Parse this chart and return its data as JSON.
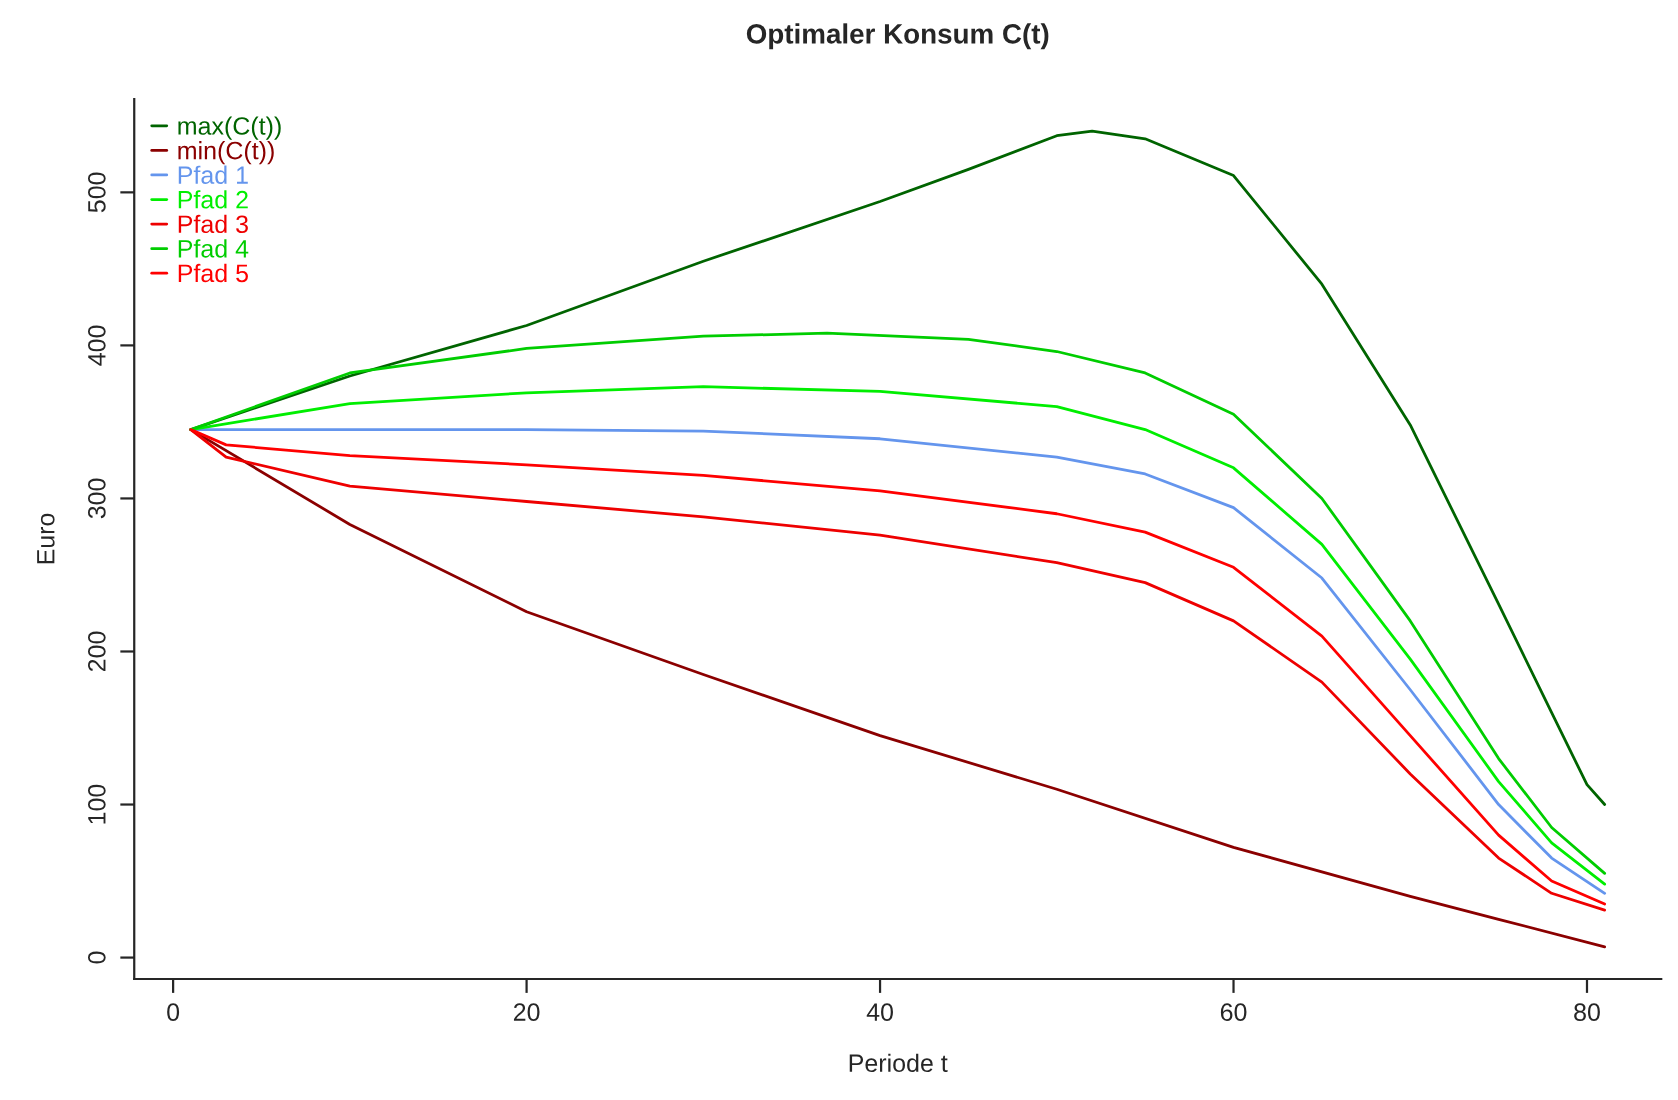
{
  "chart_data": {
    "type": "line",
    "title": "Optimaler Konsum C(t)",
    "xlabel": "Periode t",
    "ylabel": "Euro",
    "xlim": [
      -2.2,
      84.2
    ],
    "ylim": [
      -14,
      561
    ],
    "xticks": [
      0,
      20,
      40,
      60,
      80
    ],
    "yticks": [
      0,
      100,
      200,
      300,
      400,
      500
    ],
    "grid": false,
    "legend": "top left",
    "marker": "none",
    "line_style": "solid",
    "series": [
      {
        "name": "max(C(t))",
        "color": "#006400",
        "x": [
          1,
          10,
          20,
          30,
          40,
          45,
          50,
          52,
          55,
          60,
          65,
          70,
          75,
          78,
          80,
          81
        ],
        "values": [
          345,
          380,
          413,
          455,
          494,
          515,
          537,
          540,
          535,
          511,
          440,
          348,
          231,
          160,
          113,
          100
        ]
      },
      {
        "name": "min(C(t))",
        "color": "#8b0000",
        "x": [
          1,
          10,
          20,
          30,
          40,
          50,
          60,
          70,
          75,
          81
        ],
        "values": [
          345,
          283,
          226,
          185,
          145,
          110,
          72,
          40,
          25,
          7
        ]
      },
      {
        "name": "Pfad 1",
        "color": "#6495ed",
        "x": [
          1,
          5,
          20,
          30,
          40,
          50,
          55,
          60,
          65,
          70,
          75,
          78,
          81
        ],
        "values": [
          345,
          345,
          345,
          344,
          339,
          327,
          316,
          294,
          248,
          175,
          100,
          65,
          42
        ]
      },
      {
        "name": "Pfad 2",
        "color": "#00ee00",
        "x": [
          1,
          10,
          20,
          30,
          40,
          50,
          55,
          60,
          65,
          70,
          75,
          78,
          81
        ],
        "values": [
          345,
          362,
          369,
          373,
          370,
          360,
          345,
          320,
          270,
          195,
          115,
          75,
          48
        ]
      },
      {
        "name": "Pfad 3",
        "color": "#ee0000",
        "x": [
          1,
          3,
          10,
          20,
          30,
          40,
          50,
          55,
          60,
          65,
          70,
          75,
          78,
          81
        ],
        "values": [
          345,
          327,
          308,
          298,
          288,
          276,
          258,
          245,
          220,
          180,
          120,
          65,
          42,
          31
        ]
      },
      {
        "name": "Pfad 4",
        "color": "#00cd00",
        "x": [
          1,
          10,
          20,
          30,
          37,
          45,
          50,
          55,
          60,
          65,
          70,
          75,
          78,
          81
        ],
        "values": [
          345,
          382,
          398,
          406,
          408,
          404,
          396,
          382,
          355,
          300,
          220,
          130,
          85,
          55
        ]
      },
      {
        "name": "Pfad 5",
        "color": "#ff0000",
        "x": [
          1,
          3,
          10,
          20,
          30,
          40,
          50,
          55,
          60,
          65,
          70,
          75,
          78,
          81
        ],
        "values": [
          345,
          335,
          328,
          322,
          315,
          305,
          290,
          278,
          255,
          210,
          145,
          80,
          50,
          35
        ]
      }
    ]
  }
}
